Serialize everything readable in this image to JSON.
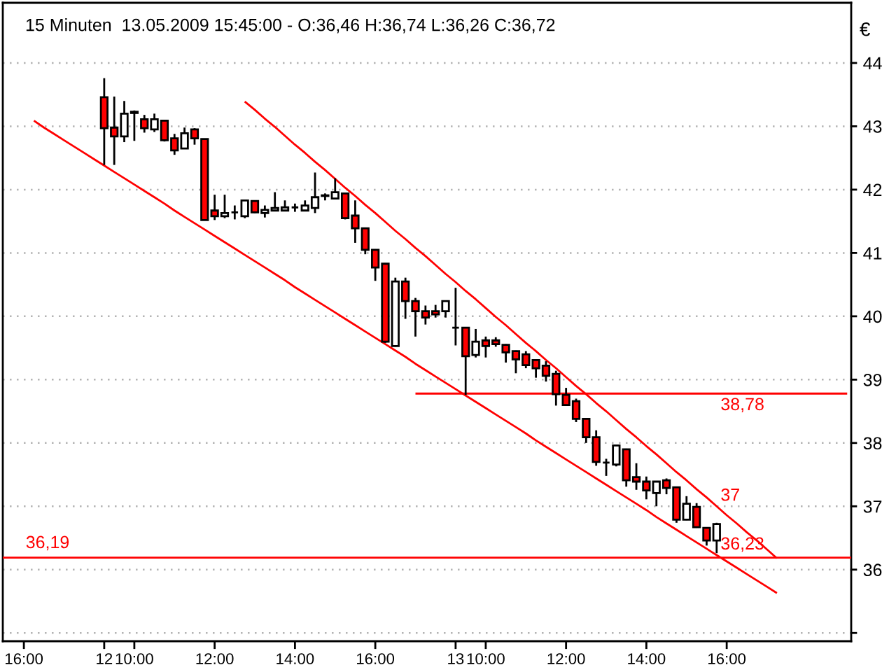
{
  "chart_data": {
    "type": "candlestick",
    "title": "15 Minuten  13.05.2009 15:45:00 - O:36,46 H:36,74 L:36,26 C:36,72",
    "ylabel": "€",
    "categories": [
      "16:00",
      null,
      null,
      null,
      null,
      null,
      null,
      null,
      "12",
      null,
      null,
      "10:00",
      null,
      null,
      null,
      null,
      null,
      null,
      null,
      "12:00",
      null,
      null,
      null,
      null,
      null,
      null,
      null,
      "14:00",
      null,
      null,
      null,
      null,
      null,
      null,
      null,
      "16:00",
      null,
      null,
      null,
      null,
      null,
      null,
      null,
      "13",
      null,
      null,
      "10:00",
      null,
      null,
      null,
      null,
      null,
      null,
      null,
      "12:00",
      null,
      null,
      null,
      null,
      null,
      null,
      null,
      "14:00",
      null,
      null,
      null,
      null,
      null,
      null,
      null,
      "16:00",
      null,
      null,
      null,
      null,
      null,
      null,
      null,
      null,
      null,
      null,
      null,
      null
    ],
    "ohlc": [
      null,
      null,
      null,
      null,
      null,
      null,
      null,
      null,
      [
        43.46,
        43.76,
        42.39,
        42.97
      ],
      [
        42.98,
        43.47,
        42.39,
        42.84
      ],
      [
        42.84,
        43.4,
        42.75,
        43.2
      ],
      [
        43.21,
        43.25,
        42.77,
        43.23
      ],
      [
        43.11,
        43.18,
        42.9,
        42.97
      ],
      [
        42.95,
        43.2,
        42.91,
        43.11
      ],
      [
        43.09,
        43.09,
        42.76,
        42.78
      ],
      [
        42.81,
        42.88,
        42.55,
        42.62
      ],
      [
        42.65,
        42.98,
        42.64,
        42.89
      ],
      [
        42.95,
        42.97,
        42.71,
        42.81
      ],
      [
        42.8,
        42.8,
        41.52,
        41.52
      ],
      [
        41.67,
        41.92,
        41.52,
        41.58
      ],
      [
        41.58,
        41.92,
        41.55,
        41.63
      ],
      [
        41.64,
        41.75,
        41.53,
        41.64
      ],
      [
        41.58,
        41.83,
        41.55,
        41.83
      ],
      [
        41.82,
        41.83,
        41.63,
        41.64
      ],
      [
        41.63,
        41.75,
        41.56,
        41.68
      ],
      [
        41.67,
        41.96,
        41.66,
        41.71
      ],
      [
        41.67,
        41.83,
        41.66,
        41.72
      ],
      [
        41.72,
        41.78,
        41.65,
        41.72
      ],
      [
        41.67,
        41.83,
        41.66,
        41.75
      ],
      [
        41.71,
        42.27,
        41.63,
        41.88
      ],
      [
        41.9,
        41.94,
        41.83,
        41.91
      ],
      [
        41.86,
        42.18,
        41.85,
        41.96
      ],
      [
        41.94,
        41.95,
        41.53,
        41.55
      ],
      [
        41.59,
        41.83,
        41.16,
        41.39
      ],
      [
        41.39,
        41.4,
        40.98,
        41.05
      ],
      [
        41.05,
        41.06,
        40.56,
        40.77
      ],
      [
        40.83,
        40.84,
        39.58,
        39.6
      ],
      [
        39.53,
        40.61,
        39.52,
        40.55
      ],
      [
        40.55,
        40.61,
        39.96,
        40.24
      ],
      [
        40.24,
        40.29,
        39.68,
        40.08
      ],
      [
        40.08,
        40.17,
        39.87,
        39.98
      ],
      [
        40.08,
        40.18,
        39.98,
        40.03
      ],
      [
        40.08,
        40.25,
        39.98,
        40.24
      ],
      [
        39.82,
        40.45,
        39.54,
        39.82
      ],
      [
        39.82,
        39.82,
        38.76,
        39.37
      ],
      [
        39.39,
        39.8,
        39.35,
        39.6
      ],
      [
        39.62,
        39.68,
        39.35,
        39.53
      ],
      [
        39.62,
        39.67,
        39.52,
        39.56
      ],
      [
        39.55,
        39.56,
        39.27,
        39.43
      ],
      [
        39.45,
        39.46,
        39.1,
        39.32
      ],
      [
        39.4,
        39.45,
        39.18,
        39.23
      ],
      [
        39.31,
        39.32,
        39.03,
        39.18
      ],
      [
        39.22,
        39.29,
        38.97,
        39.06
      ],
      [
        39.09,
        39.14,
        38.59,
        38.77
      ],
      [
        38.76,
        38.87,
        38.59,
        38.6
      ],
      [
        38.66,
        38.7,
        38.33,
        38.38
      ],
      [
        38.38,
        38.39,
        38.0,
        38.09
      ],
      [
        38.09,
        38.2,
        37.64,
        37.7
      ],
      [
        37.69,
        37.75,
        37.48,
        37.69
      ],
      [
        37.66,
        37.97,
        37.63,
        37.96
      ],
      [
        37.9,
        37.91,
        37.31,
        37.41
      ],
      [
        37.46,
        37.68,
        37.26,
        37.39
      ],
      [
        37.39,
        37.47,
        37.11,
        37.25
      ],
      [
        37.21,
        37.4,
        37.0,
        37.39
      ],
      [
        37.41,
        37.44,
        37.19,
        37.29
      ],
      [
        37.3,
        37.31,
        36.74,
        36.79
      ],
      [
        36.79,
        37.16,
        36.78,
        37.04
      ],
      [
        36.99,
        37.05,
        36.66,
        36.67
      ],
      [
        36.66,
        36.67,
        36.38,
        36.46
      ],
      [
        36.46,
        36.74,
        36.26,
        36.72
      ],
      null,
      null,
      null,
      null,
      null,
      null,
      null,
      null,
      null,
      null,
      null,
      null,
      null
    ],
    "colors": [
      null,
      null,
      null,
      null,
      null,
      null,
      null,
      null,
      "#ff0000",
      "#ff0000",
      "#ffffff",
      "#ffffff",
      "#ff0000",
      "#ffffff",
      "#ff0000",
      "#ff0000",
      "#ffffff",
      "#ff0000",
      "#ff0000",
      "#ff0000",
      "#ffffff",
      "#000000",
      "#ffffff",
      "#ff0000",
      "#ffffff",
      "#ffffff",
      "#ffffff",
      "#000000",
      "#ffffff",
      "#ffffff",
      "#ffffff",
      "#ffffff",
      "#ff0000",
      "#ff0000",
      "#ff0000",
      "#ff0000",
      "#ff0000",
      "#ffffff",
      "#ff0000",
      "#ff0000",
      "#ff0000",
      "#ff0000",
      "#ffffff",
      "#000000",
      "#ff0000",
      "#ffffff",
      "#ff0000",
      "#ff0000",
      "#ff0000",
      "#ff0000",
      "#ff0000",
      "#ff0000",
      "#ff0000",
      "#ff0000",
      "#ff0000",
      "#ff0000",
      "#ff0000",
      "#ff0000",
      "#000000",
      "#ffffff",
      "#ff0000",
      "#ff0000",
      "#ff0000",
      "#ffffff",
      "#ff0000",
      "#ff0000",
      "#ffffff",
      "#ff0000",
      "#ff0000",
      "#ffffff",
      null,
      null,
      null,
      null,
      null,
      null,
      null,
      null,
      null,
      null,
      null,
      null,
      null
    ],
    "series": [
      {
        "type": "line",
        "color": "#ff0000",
        "values": [
          null,
          43.09,
          42.98,
          42.88,
          42.78,
          42.68,
          42.58,
          42.48,
          42.38,
          42.28,
          42.18,
          42.08,
          41.98,
          41.88,
          41.78,
          41.67,
          41.57,
          41.47,
          41.37,
          41.27,
          41.17,
          41.07,
          40.97,
          40.87,
          40.77,
          40.67,
          40.57,
          40.46,
          40.36,
          40.26,
          40.16,
          40.06,
          39.96,
          39.86,
          39.76,
          39.66,
          39.56,
          39.46,
          39.36,
          39.25,
          39.15,
          39.05,
          38.95,
          38.85,
          38.75,
          38.65,
          38.55,
          38.45,
          38.35,
          38.25,
          38.15,
          38.04,
          37.94,
          37.84,
          37.74,
          37.64,
          37.54,
          37.44,
          37.34,
          37.24,
          37.14,
          37.04,
          36.94,
          36.83,
          36.73,
          36.63,
          36.53,
          36.43,
          36.33,
          36.23,
          36.13,
          36.03,
          35.93,
          35.83,
          35.73,
          35.63,
          null,
          null,
          null,
          null,
          null,
          null,
          null
        ],
        "value_labels": [
          null,
          null,
          null,
          null,
          null,
          null,
          null,
          null,
          null,
          null,
          null,
          null,
          null,
          null,
          null,
          null,
          null,
          null,
          null,
          null,
          null,
          null,
          null,
          null,
          null,
          null,
          null,
          null,
          null,
          null,
          null,
          null,
          null,
          null,
          null,
          null,
          null,
          null,
          null,
          null,
          null,
          null,
          null,
          null,
          null,
          null,
          null,
          null,
          null,
          null,
          null,
          null,
          null,
          null,
          null,
          null,
          null,
          null,
          null,
          null,
          null,
          null,
          null,
          null,
          null,
          null,
          null,
          null,
          null,
          "36,23",
          null,
          null,
          null,
          null,
          null,
          null,
          null,
          null,
          null,
          null,
          null,
          null,
          null
        ]
      },
      {
        "type": "line",
        "color": "#ff0000",
        "values": [
          null,
          null,
          null,
          null,
          null,
          null,
          null,
          null,
          null,
          null,
          null,
          null,
          null,
          null,
          null,
          null,
          null,
          null,
          null,
          null,
          null,
          null,
          43.39,
          43.26,
          43.12,
          42.99,
          42.85,
          42.71,
          42.58,
          42.44,
          42.31,
          42.17,
          42.03,
          41.9,
          41.76,
          41.63,
          41.49,
          41.35,
          41.22,
          41.08,
          40.95,
          40.81,
          40.67,
          40.54,
          40.4,
          40.27,
          40.13,
          39.99,
          39.86,
          39.72,
          39.58,
          39.45,
          39.31,
          39.18,
          39.04,
          38.9,
          38.77,
          38.63,
          38.5,
          38.36,
          38.22,
          38.09,
          37.95,
          37.82,
          37.68,
          37.54,
          37.41,
          37.27,
          37.14,
          37.0,
          36.86,
          36.73,
          36.59,
          36.46,
          36.32,
          36.18,
          null,
          null,
          null,
          null,
          null,
          null,
          null
        ],
        "value_labels": [
          null,
          null,
          null,
          null,
          null,
          null,
          null,
          null,
          null,
          null,
          null,
          null,
          null,
          null,
          null,
          null,
          null,
          null,
          null,
          null,
          null,
          null,
          null,
          null,
          null,
          null,
          null,
          null,
          null,
          null,
          null,
          null,
          null,
          null,
          null,
          null,
          null,
          null,
          null,
          null,
          null,
          null,
          null,
          null,
          null,
          null,
          null,
          null,
          null,
          null,
          null,
          null,
          null,
          null,
          null,
          null,
          null,
          null,
          null,
          null,
          null,
          null,
          null,
          null,
          null,
          null,
          null,
          null,
          null,
          "37",
          null,
          null,
          null,
          null,
          null,
          null,
          null,
          null,
          null,
          null,
          null,
          null,
          null
        ]
      },
      {
        "type": "line",
        "color": "#ff0000",
        "values": [
          null,
          null,
          null,
          null,
          null,
          null,
          null,
          null,
          null,
          null,
          null,
          null,
          null,
          null,
          null,
          null,
          null,
          null,
          null,
          null,
          null,
          null,
          null,
          null,
          null,
          null,
          null,
          null,
          null,
          null,
          null,
          null,
          null,
          null,
          null,
          null,
          null,
          null,
          null,
          38.78,
          38.78,
          38.78,
          38.78,
          38.78,
          38.78,
          38.78,
          38.78,
          38.78,
          38.78,
          38.78,
          38.78,
          38.78,
          38.78,
          38.78,
          38.78,
          38.78,
          38.78,
          38.78,
          38.78,
          38.78,
          38.78,
          38.78,
          38.78,
          38.78,
          38.78,
          38.78,
          38.78,
          38.78,
          38.78,
          38.78,
          38.78,
          38.78,
          38.78,
          38.78,
          38.78,
          38.78,
          38.78,
          38.78,
          38.78,
          38.78,
          38.78,
          38.78,
          38.78
        ],
        "value_labels": [
          null,
          null,
          null,
          null,
          null,
          null,
          null,
          null,
          null,
          null,
          null,
          null,
          null,
          null,
          null,
          null,
          null,
          null,
          null,
          null,
          null,
          null,
          null,
          null,
          null,
          null,
          null,
          null,
          null,
          null,
          null,
          null,
          null,
          null,
          null,
          null,
          null,
          null,
          null,
          null,
          null,
          null,
          null,
          null,
          null,
          null,
          null,
          null,
          null,
          null,
          null,
          null,
          null,
          null,
          null,
          null,
          null,
          null,
          null,
          null,
          null,
          null,
          null,
          null,
          null,
          null,
          null,
          null,
          null,
          "38,78",
          null,
          null,
          null,
          null,
          null,
          null,
          null,
          null,
          null,
          null,
          null,
          null,
          null
        ]
      }
    ],
    "ref_lines": [
      {
        "axis": "y",
        "value": 36.19,
        "label": "36,19",
        "color": "#ff0000"
      }
    ],
    "ylim": [
      34.87,
      44.95
    ],
    "yticks": [
      {
        "value": 35,
        "label": null
      },
      36,
      37,
      38,
      39,
      40,
      41,
      42,
      43,
      44
    ],
    "grid": "y"
  }
}
